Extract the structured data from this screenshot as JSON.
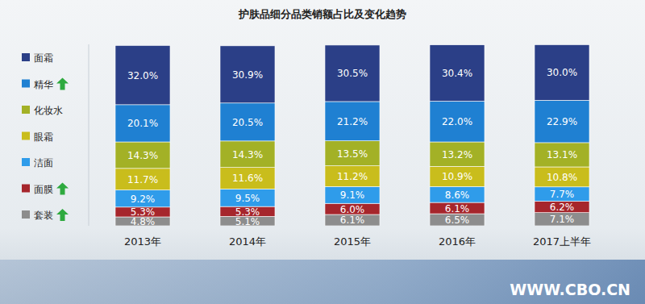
{
  "chart_data": {
    "type": "bar",
    "title": "护肤品细分品类销额占比及变化趋势",
    "stacked": true,
    "data_labels": true,
    "tick_labels": "x",
    "legend": "left",
    "ylim": [
      0,
      98
    ],
    "categories": [
      "2013年",
      "2014年",
      "2015年",
      "2016年",
      "2017上半年"
    ],
    "series": [
      {
        "name": "面霜",
        "color": "#2b3f87",
        "values": [
          32.0,
          30.9,
          30.5,
          30.4,
          30.0
        ],
        "value_labels": [
          "32.0%",
          "30.9%",
          "30.5%",
          "30.4%",
          "30.0%"
        ]
      },
      {
        "name": "精华",
        "color": "#1f80d2",
        "marker": "up-arrow",
        "values": [
          20.1,
          20.5,
          21.2,
          22.0,
          22.9
        ],
        "value_labels": [
          "20.1%",
          "20.5%",
          "21.2%",
          "22.0%",
          "22.9%"
        ]
      },
      {
        "name": "化妆水",
        "color": "#a3b126",
        "values": [
          14.3,
          14.3,
          13.5,
          13.2,
          13.1
        ],
        "value_labels": [
          "14.3%",
          "14.3%",
          "13.5%",
          "13.2%",
          "13.1%"
        ]
      },
      {
        "name": "眼霜",
        "color": "#c9bd1c",
        "values": [
          11.7,
          11.6,
          11.2,
          10.9,
          10.8
        ],
        "value_labels": [
          "11.7%",
          "11.6%",
          "11.2%",
          "10.9%",
          "10.8%"
        ]
      },
      {
        "name": "洁面",
        "color": "#2f9cea",
        "values": [
          9.2,
          9.5,
          9.1,
          8.6,
          7.7
        ],
        "value_labels": [
          "9.2%",
          "9.5%",
          "9.1%",
          "8.6%",
          "7.7%"
        ]
      },
      {
        "name": "面膜",
        "color": "#a6262c",
        "marker": "up-arrow",
        "values": [
          5.3,
          5.3,
          6.0,
          6.1,
          6.2
        ],
        "value_labels": [
          "5.3%",
          "5.3%",
          "6.0%",
          "6.1%",
          "6.2%"
        ]
      },
      {
        "name": "套装",
        "color": "#8d8d8d",
        "marker": "up-arrow",
        "values": [
          4.8,
          5.1,
          6.1,
          6.5,
          7.1
        ],
        "value_labels": [
          "4.8%",
          "5.1%",
          "6.1%",
          "6.5%",
          "7.1%"
        ]
      }
    ],
    "annotations": [
      "WWW.CBO.CN"
    ]
  }
}
